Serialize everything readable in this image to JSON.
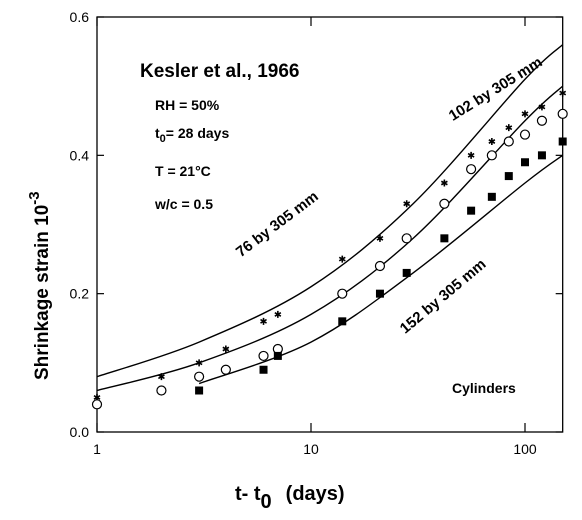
{
  "chart_data": {
    "type": "line",
    "x_label": [
      "t- t",
      "0",
      "(days)"
    ],
    "y_label": [
      "Shrinkage strain 10",
      "-3"
    ],
    "xscale": "log",
    "xlim": [
      1,
      150
    ],
    "ylim": [
      0,
      0.6
    ],
    "xticks": [
      1,
      10,
      100
    ],
    "yticks": [
      {
        "value": 0,
        "label": "0.0"
      },
      {
        "value": 0.2,
        "label": "0.2"
      },
      {
        "value": 0.4,
        "label": "0.4"
      },
      {
        "value": 0.6,
        "label": "0.6"
      }
    ],
    "annotations": {
      "source": "Kesler et al., 1966",
      "rh": "RH = 50%",
      "t0": [
        "t",
        "0",
        "= 28 days"
      ],
      "temp": "T = 21°C",
      "wc": "w/c = 0.5",
      "specimen": "Cylinders"
    },
    "curves": [
      {
        "name": "76 by 305 mm",
        "color": "#000000",
        "x": [
          1,
          3,
          10,
          30,
          100,
          150
        ],
        "values": [
          0.08,
          0.13,
          0.21,
          0.33,
          0.51,
          0.56
        ]
      },
      {
        "name": "102 by 305 mm",
        "color": "#000000",
        "x": [
          1,
          3,
          10,
          30,
          100,
          150
        ],
        "values": [
          0.06,
          0.1,
          0.17,
          0.28,
          0.45,
          0.5
        ]
      },
      {
        "name": "152 by 305 mm",
        "color": "#000000",
        "x": [
          3,
          10,
          30,
          100,
          150
        ],
        "values": [
          0.07,
          0.13,
          0.23,
          0.36,
          0.4
        ]
      }
    ],
    "points": [
      {
        "marker": "star",
        "color": "#000000",
        "x": [
          1,
          2,
          3,
          4,
          6,
          7,
          14,
          21,
          28,
          42,
          56,
          70,
          84,
          100,
          120,
          150
        ],
        "values": [
          0.05,
          0.08,
          0.1,
          0.12,
          0.16,
          0.17,
          0.25,
          0.28,
          0.33,
          0.36,
          0.4,
          0.42,
          0.44,
          0.46,
          0.47,
          0.49
        ]
      },
      {
        "marker": "circle",
        "color": "#000000",
        "x": [
          1,
          2,
          3,
          4,
          6,
          7,
          14,
          21,
          28,
          42,
          56,
          70,
          84,
          100,
          120,
          150
        ],
        "values": [
          0.04,
          0.06,
          0.08,
          0.09,
          0.11,
          0.12,
          0.2,
          0.24,
          0.28,
          0.33,
          0.38,
          0.4,
          0.42,
          0.43,
          0.45,
          0.46
        ]
      },
      {
        "marker": "square",
        "color": "#000000",
        "x": [
          3,
          6,
          7,
          14,
          21,
          28,
          42,
          56,
          70,
          84,
          100,
          120,
          150
        ],
        "values": [
          0.06,
          0.09,
          0.11,
          0.16,
          0.2,
          0.23,
          0.28,
          0.32,
          0.34,
          0.37,
          0.39,
          0.4,
          0.42
        ]
      }
    ]
  }
}
